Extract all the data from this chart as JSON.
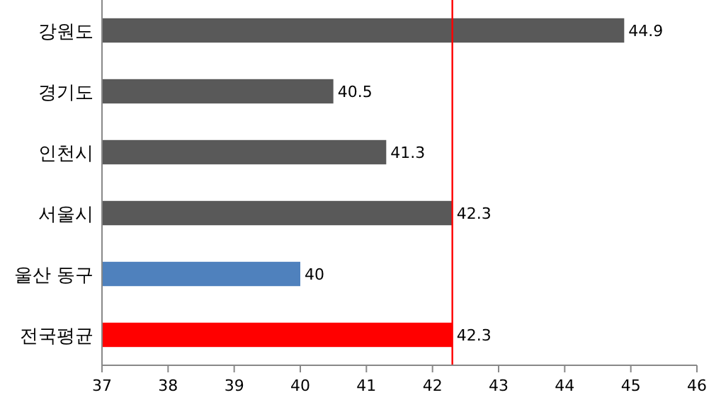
{
  "chart_data": {
    "type": "bar",
    "orientation": "horizontal",
    "categories": [
      "강원도",
      "경기도",
      "인천시",
      "서울시",
      "울산 동구",
      "전국평균"
    ],
    "values": [
      44.9,
      40.5,
      41.3,
      42.3,
      40,
      42.3
    ],
    "colors": [
      "#595959",
      "#595959",
      "#595959",
      "#595959",
      "#4f81bd",
      "#ff0000"
    ],
    "xlim": [
      37,
      46
    ],
    "xticks": [
      37,
      38,
      39,
      40,
      41,
      42,
      43,
      44,
      45,
      46
    ],
    "data_labels": true,
    "ref_lines": [
      {
        "axis": "x",
        "value": 42.3,
        "color": "#ff0000"
      }
    ]
  }
}
